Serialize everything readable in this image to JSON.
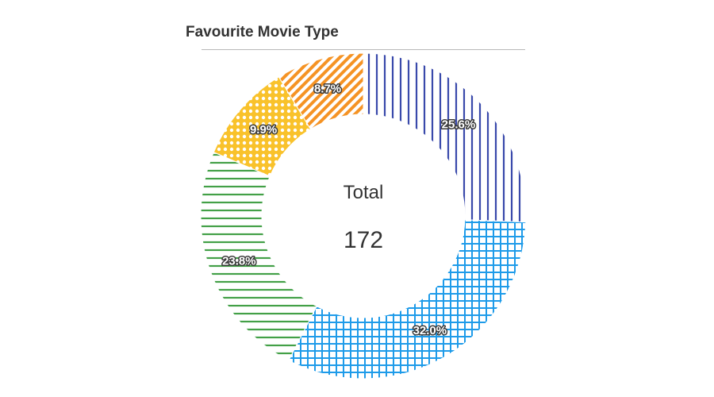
{
  "chart_data": {
    "type": "pie",
    "donut": true,
    "title": "Favourite Movie Type",
    "center_label": "Total",
    "center_value": "172",
    "slices": [
      {
        "label": "25.6%",
        "value": 25.6,
        "color": "#3949ab",
        "pattern": "vertical-lines"
      },
      {
        "label": "32.0%",
        "value": 32.0,
        "color": "#1e9be9",
        "pattern": "grid"
      },
      {
        "label": "23.8%",
        "value": 23.8,
        "color": "#43a047",
        "pattern": "horizontal-lines"
      },
      {
        "label": "9.9%",
        "value": 9.9,
        "color": "#f9c22b",
        "pattern": "dots"
      },
      {
        "label": "8.7%",
        "value": 8.7,
        "color": "#f59324",
        "pattern": "diagonal-lines"
      }
    ]
  }
}
